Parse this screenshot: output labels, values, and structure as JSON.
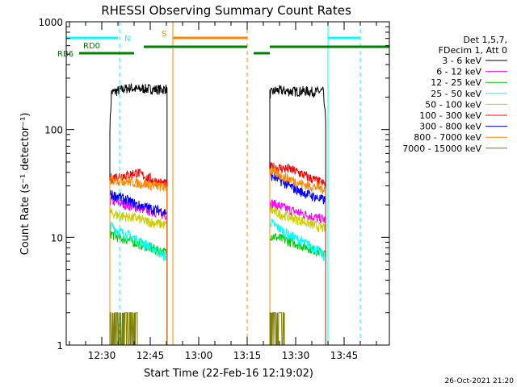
{
  "chart_data": {
    "type": "line",
    "title": "RHESSI Observing Summary Count Rates",
    "xlabel": "Start Time (22-Feb-16 12:19:02)",
    "ylabel": "Count Rate (s⁻¹ detector⁻¹)",
    "yscale": "log",
    "ylim": [
      1,
      1000
    ],
    "xlim_minutes_after_1219": [
      0,
      100
    ],
    "x_ticks": [
      {
        "label": "12:30",
        "minutes": 11
      },
      {
        "label": "12:45",
        "minutes": 26
      },
      {
        "label": "13:00",
        "minutes": 41
      },
      {
        "label": "13:15",
        "minutes": 56
      },
      {
        "label": "13:30",
        "minutes": 71
      },
      {
        "label": "13:45",
        "minutes": 86
      }
    ],
    "y_ticks": [
      "1",
      "10",
      "100",
      "1000"
    ],
    "legend_header": [
      "Det 1,5,7,",
      "FDecim 1, Att 0"
    ],
    "legend_position": "right",
    "series": [
      {
        "name": "3 - 6 keV",
        "color": "#000000",
        "segments": [
          [
            [
              13.5,
              105
            ],
            [
              14,
              220
            ],
            [
              16,
              230
            ],
            [
              18,
              238
            ],
            [
              20,
              245
            ],
            [
              22,
              236
            ],
            [
              24,
              240
            ],
            [
              26,
              238
            ],
            [
              28,
              236
            ],
            [
              30,
              236
            ],
            [
              31.2,
              240
            ]
          ],
          [
            [
              63,
              215
            ],
            [
              65,
              232
            ],
            [
              68,
              228
            ],
            [
              71,
              226
            ],
            [
              74,
              228
            ],
            [
              77,
              224
            ],
            [
              79.5,
              228
            ],
            [
              80.3,
              115
            ]
          ]
        ]
      },
      {
        "name": "6 - 12 keV",
        "color": "#ff00ff",
        "segments": [
          [
            [
              13.5,
              22
            ],
            [
              16,
              21
            ],
            [
              19,
              20
            ],
            [
              22,
              19
            ],
            [
              25,
              18
            ],
            [
              28,
              17
            ],
            [
              31.2,
              16
            ]
          ],
          [
            [
              63,
              21
            ],
            [
              66,
              19.5
            ],
            [
              69,
              18
            ],
            [
              72,
              17
            ],
            [
              75,
              16
            ],
            [
              78,
              15
            ],
            [
              80.3,
              14.5
            ]
          ]
        ]
      },
      {
        "name": "12 - 25 keV",
        "color": "#00cc00",
        "segments": [
          [
            [
              13.5,
              11
            ],
            [
              16,
              10
            ],
            [
              19,
              9.5
            ],
            [
              22,
              8.8
            ],
            [
              25,
              8.2
            ],
            [
              28,
              7.6
            ],
            [
              31.2,
              7.2
            ]
          ],
          [
            [
              63,
              10.5
            ],
            [
              66,
              9.8
            ],
            [
              69,
              9.2
            ],
            [
              72,
              8.6
            ],
            [
              75,
              8
            ],
            [
              78,
              7.4
            ],
            [
              80.3,
              7
            ]
          ]
        ]
      },
      {
        "name": "25 - 50 keV",
        "color": "#00ffff",
        "segments": [
          [
            [
              13.5,
              13
            ],
            [
              16,
              11.5
            ],
            [
              19,
              10.5
            ],
            [
              22,
              9.5
            ],
            [
              25,
              8.5
            ],
            [
              28,
              7.5
            ],
            [
              31.2,
              6.5
            ]
          ],
          [
            [
              63,
              14
            ],
            [
              66,
              12
            ],
            [
              69,
              10.5
            ],
            [
              72,
              9.5
            ],
            [
              75,
              8.5
            ],
            [
              78,
              7.5
            ],
            [
              80.3,
              6.5
            ]
          ]
        ]
      },
      {
        "name": "50 - 100 keV",
        "color": "#cccc00",
        "segments": [
          [
            [
              13.5,
              17
            ],
            [
              16,
              16
            ],
            [
              19,
              15.5
            ],
            [
              22,
              15
            ],
            [
              25,
              14
            ],
            [
              28,
              13.5
            ],
            [
              31.2,
              13
            ]
          ],
          [
            [
              63,
              18
            ],
            [
              66,
              16.5
            ],
            [
              69,
              15.5
            ],
            [
              72,
              14.5
            ],
            [
              75,
              13.5
            ],
            [
              78,
              12.5
            ],
            [
              80.3,
              12
            ]
          ]
        ]
      },
      {
        "name": "100 - 300 keV",
        "color": "#ff0000",
        "segments": [
          [
            [
              13.5,
              35
            ],
            [
              16,
              37
            ],
            [
              19,
              38
            ],
            [
              22,
              40
            ],
            [
              25,
              36
            ],
            [
              28,
              33
            ],
            [
              31.2,
              31
            ]
          ],
          [
            [
              63,
              45
            ],
            [
              66,
              44
            ],
            [
              69,
              43
            ],
            [
              72,
              40
            ],
            [
              75,
              36
            ],
            [
              78,
              33
            ],
            [
              80.3,
              31
            ]
          ]
        ]
      },
      {
        "name": "300 - 800 keV",
        "color": "#0000ff",
        "segments": [
          [
            [
              13.5,
              25
            ],
            [
              16,
              24
            ],
            [
              19,
              22
            ],
            [
              22,
              20
            ],
            [
              25,
              19
            ],
            [
              28,
              18
            ],
            [
              31.2,
              17
            ]
          ],
          [
            [
              63,
              38
            ],
            [
              66,
              34
            ],
            [
              69,
              30
            ],
            [
              72,
              27
            ],
            [
              75,
              25
            ],
            [
              78,
              23
            ],
            [
              80.3,
              22
            ]
          ]
        ]
      },
      {
        "name": "800 - 7000 keV",
        "color": "#ff8800",
        "segments": [
          [
            [
              13.5,
              34
            ],
            [
              16,
              34
            ],
            [
              19,
              33
            ],
            [
              22,
              32
            ],
            [
              25,
              31
            ],
            [
              28,
              30
            ],
            [
              31.2,
              29
            ]
          ],
          [
            [
              63,
              42
            ],
            [
              66,
              38
            ],
            [
              69,
              35
            ],
            [
              72,
              32
            ],
            [
              75,
              30
            ],
            [
              78,
              29
            ],
            [
              80.3,
              28
            ]
          ]
        ]
      },
      {
        "name": "7000 - 15000 keV",
        "color": "#808000",
        "segments": [
          [
            [
              13.5,
              2
            ],
            [
              15,
              2
            ],
            [
              17,
              2
            ],
            [
              19,
              2
            ],
            [
              21,
              2
            ],
            [
              22,
              2
            ]
          ],
          [
            [
              63,
              2
            ],
            [
              64.5,
              2
            ],
            [
              66,
              2
            ],
            [
              67.5,
              2
            ]
          ]
        ]
      }
    ],
    "state_bars": [
      {
        "name": "N",
        "color": "#00ffff",
        "level": "top",
        "ranges": [
          [
            0,
            16
          ],
          [
            81,
            91
          ]
        ]
      },
      {
        "name": "S",
        "color": "#ff8800",
        "level": "top",
        "ranges": [
          [
            33,
            56
          ]
        ]
      },
      {
        "name": "RD0",
        "color": "#008000",
        "level": "middle",
        "ranges": [
          [
            24,
            56
          ],
          [
            63,
            100
          ]
        ]
      },
      {
        "name": "RB6",
        "color": "#008000",
        "level": "lower",
        "ranges": [
          [
            4,
            21
          ],
          [
            58,
            63
          ]
        ]
      }
    ],
    "vertical_markers": [
      {
        "minutes": 0,
        "color": "#00ffff",
        "style": "solid"
      },
      {
        "minutes": 16.5,
        "color": "#00ffff",
        "style": "dashed"
      },
      {
        "minutes": 33,
        "color": "#ff8800",
        "style": "solid"
      },
      {
        "minutes": 56,
        "color": "#ff8800",
        "style": "dashed"
      },
      {
        "minutes": 81,
        "color": "#00ffff",
        "style": "solid"
      },
      {
        "minutes": 91,
        "color": "#00ffff",
        "style": "dashed"
      }
    ]
  },
  "footer": {
    "timestamp": "26-Oct-2021 21:20"
  }
}
